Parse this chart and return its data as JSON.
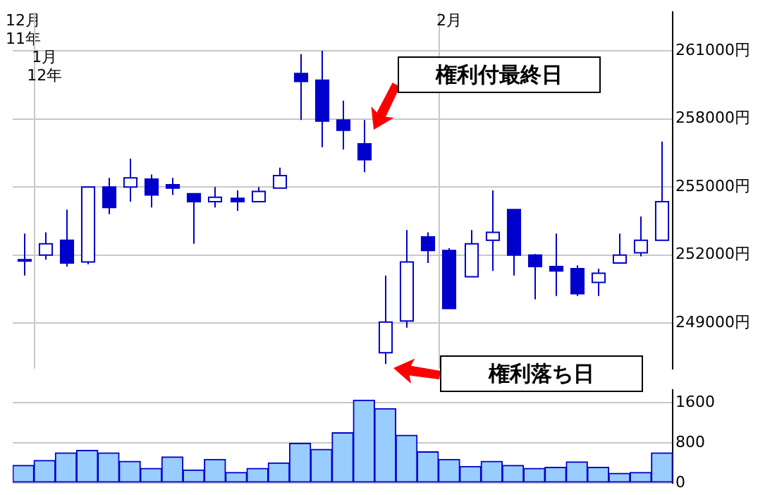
{
  "chart_data": [
    {
      "type": "candlestick",
      "color": "#0000cc",
      "categories": [
        "12月\n11年",
        "1月\n12年",
        null,
        null,
        null,
        null,
        null,
        null,
        null,
        null,
        null,
        null,
        null,
        null,
        null,
        null,
        null,
        null,
        null,
        null,
        "2月",
        null,
        null,
        null,
        null,
        null,
        null,
        null,
        null,
        null,
        null
      ],
      "ohlc": [
        [
          251800,
          252950,
          251100,
          251800
        ],
        [
          252000,
          253000,
          251800,
          252500
        ],
        [
          252650,
          254000,
          251500,
          251650
        ],
        [
          251700,
          255000,
          251600,
          255000
        ],
        [
          255000,
          255400,
          253800,
          254100
        ],
        [
          255000,
          256250,
          254350,
          255400
        ],
        [
          255350,
          255550,
          254100,
          254650
        ],
        [
          255100,
          255400,
          254650,
          254950
        ],
        [
          254700,
          254700,
          252500,
          254350
        ],
        [
          254350,
          255000,
          254100,
          254550
        ],
        [
          254500,
          254850,
          253950,
          254350
        ],
        [
          254350,
          255000,
          254350,
          254800
        ],
        [
          254950,
          255850,
          254950,
          255500
        ],
        [
          260000,
          260850,
          257950,
          259650
        ],
        [
          259700,
          261000,
          256750,
          257900
        ],
        [
          257950,
          258800,
          256650,
          257500
        ],
        [
          256900,
          257950,
          255650,
          256200
        ],
        [
          247700,
          251100,
          247200,
          249050
        ],
        [
          249100,
          253100,
          248800,
          251700
        ],
        [
          252800,
          253000,
          251650,
          252200
        ],
        [
          252200,
          252300,
          249650,
          249650
        ],
        [
          251050,
          253100,
          251050,
          252500
        ],
        [
          252650,
          254850,
          251300,
          253000
        ],
        [
          254000,
          254000,
          251100,
          252000
        ],
        [
          252000,
          252050,
          250050,
          251500
        ],
        [
          251500,
          252950,
          250200,
          251300
        ],
        [
          251400,
          251550,
          250200,
          250300
        ],
        [
          250800,
          251400,
          250200,
          251200
        ],
        [
          251650,
          252950,
          251650,
          252000
        ],
        [
          252100,
          253700,
          251950,
          252650
        ],
        [
          252650,
          257000,
          252650,
          254350
        ]
      ],
      "ylim": [
        247000,
        262700
      ],
      "yticks": [
        {
          "value": 249000,
          "label": "249000円"
        },
        {
          "value": 252000,
          "label": "252000円"
        },
        {
          "value": 255000,
          "label": "255000円"
        },
        {
          "value": 258000,
          "label": "258000円"
        },
        {
          "value": 261000,
          "label": "261000円"
        }
      ],
      "grid": true,
      "annotations": [
        "権利付最終日",
        "権利落ち日"
      ]
    },
    {
      "type": "bar",
      "color": "#99ccff",
      "categories": [
        null,
        null,
        null,
        null,
        null,
        null,
        null,
        null,
        null,
        null,
        null,
        null,
        null,
        null,
        null,
        null,
        null,
        null,
        null,
        null,
        null,
        null,
        null,
        null,
        null,
        null,
        null,
        null,
        null,
        null,
        null
      ],
      "values": [
        350,
        450,
        600,
        650,
        600,
        430,
        290,
        520,
        260,
        470,
        210,
        290,
        400,
        790,
        670,
        1000,
        1650,
        1480,
        950,
        620,
        470,
        330,
        430,
        350,
        290,
        310,
        420,
        310,
        190,
        210,
        600
      ],
      "ylim": [
        0,
        1850
      ],
      "yticks": [
        0,
        800,
        1600
      ],
      "grid": true
    }
  ]
}
